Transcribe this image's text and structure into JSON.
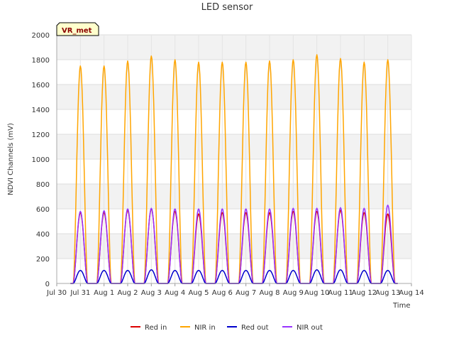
{
  "chart_data": {
    "type": "line",
    "title": "LED sensor",
    "xlabel": "Time",
    "ylabel": "NDVI Channels (mV)",
    "badge": "VR_met",
    "ylim": [
      0,
      2000
    ],
    "yticks": [
      0,
      200,
      400,
      600,
      800,
      1000,
      1200,
      1400,
      1600,
      1800,
      2000
    ],
    "x_start": "Jul 30",
    "x_end": "Aug 14",
    "xticks": [
      "Jul 30",
      "Jul 31",
      "Aug 1",
      "Aug 2",
      "Aug 3",
      "Aug 4",
      "Aug 5",
      "Aug 6",
      "Aug 7",
      "Aug 8",
      "Aug 9",
      "Aug 10",
      "Aug 11",
      "Aug 12",
      "Aug 13",
      "Aug 14"
    ],
    "grid": true,
    "legend_position": "bottom",
    "daily_peak_dates": [
      "Jul 31",
      "Aug 1",
      "Aug 2",
      "Aug 3",
      "Aug 4",
      "Aug 5",
      "Aug 6",
      "Aug 7",
      "Aug 8",
      "Aug 9",
      "Aug 10",
      "Aug 11",
      "Aug 12",
      "Aug 13"
    ],
    "series": [
      {
        "name": "Red in",
        "color": "#dd0000",
        "daily_peaks": [
          570,
          570,
          590,
          600,
          580,
          560,
          570,
          570,
          570,
          580,
          580,
          590,
          570,
          560
        ]
      },
      {
        "name": "NIR in",
        "color": "#ffa500",
        "daily_peaks": [
          1750,
          1750,
          1790,
          1830,
          1800,
          1780,
          1780,
          1780,
          1790,
          1800,
          1840,
          1810,
          1780,
          1800
        ]
      },
      {
        "name": "Red out",
        "color": "#0000cc",
        "daily_peaks": [
          105,
          105,
          105,
          110,
          105,
          105,
          105,
          105,
          105,
          105,
          110,
          110,
          105,
          105
        ]
      },
      {
        "name": "NIR out",
        "color": "#9933ff",
        "daily_peaks": [
          580,
          585,
          600,
          605,
          600,
          600,
          600,
          600,
          600,
          605,
          605,
          610,
          605,
          630
        ]
      }
    ]
  }
}
